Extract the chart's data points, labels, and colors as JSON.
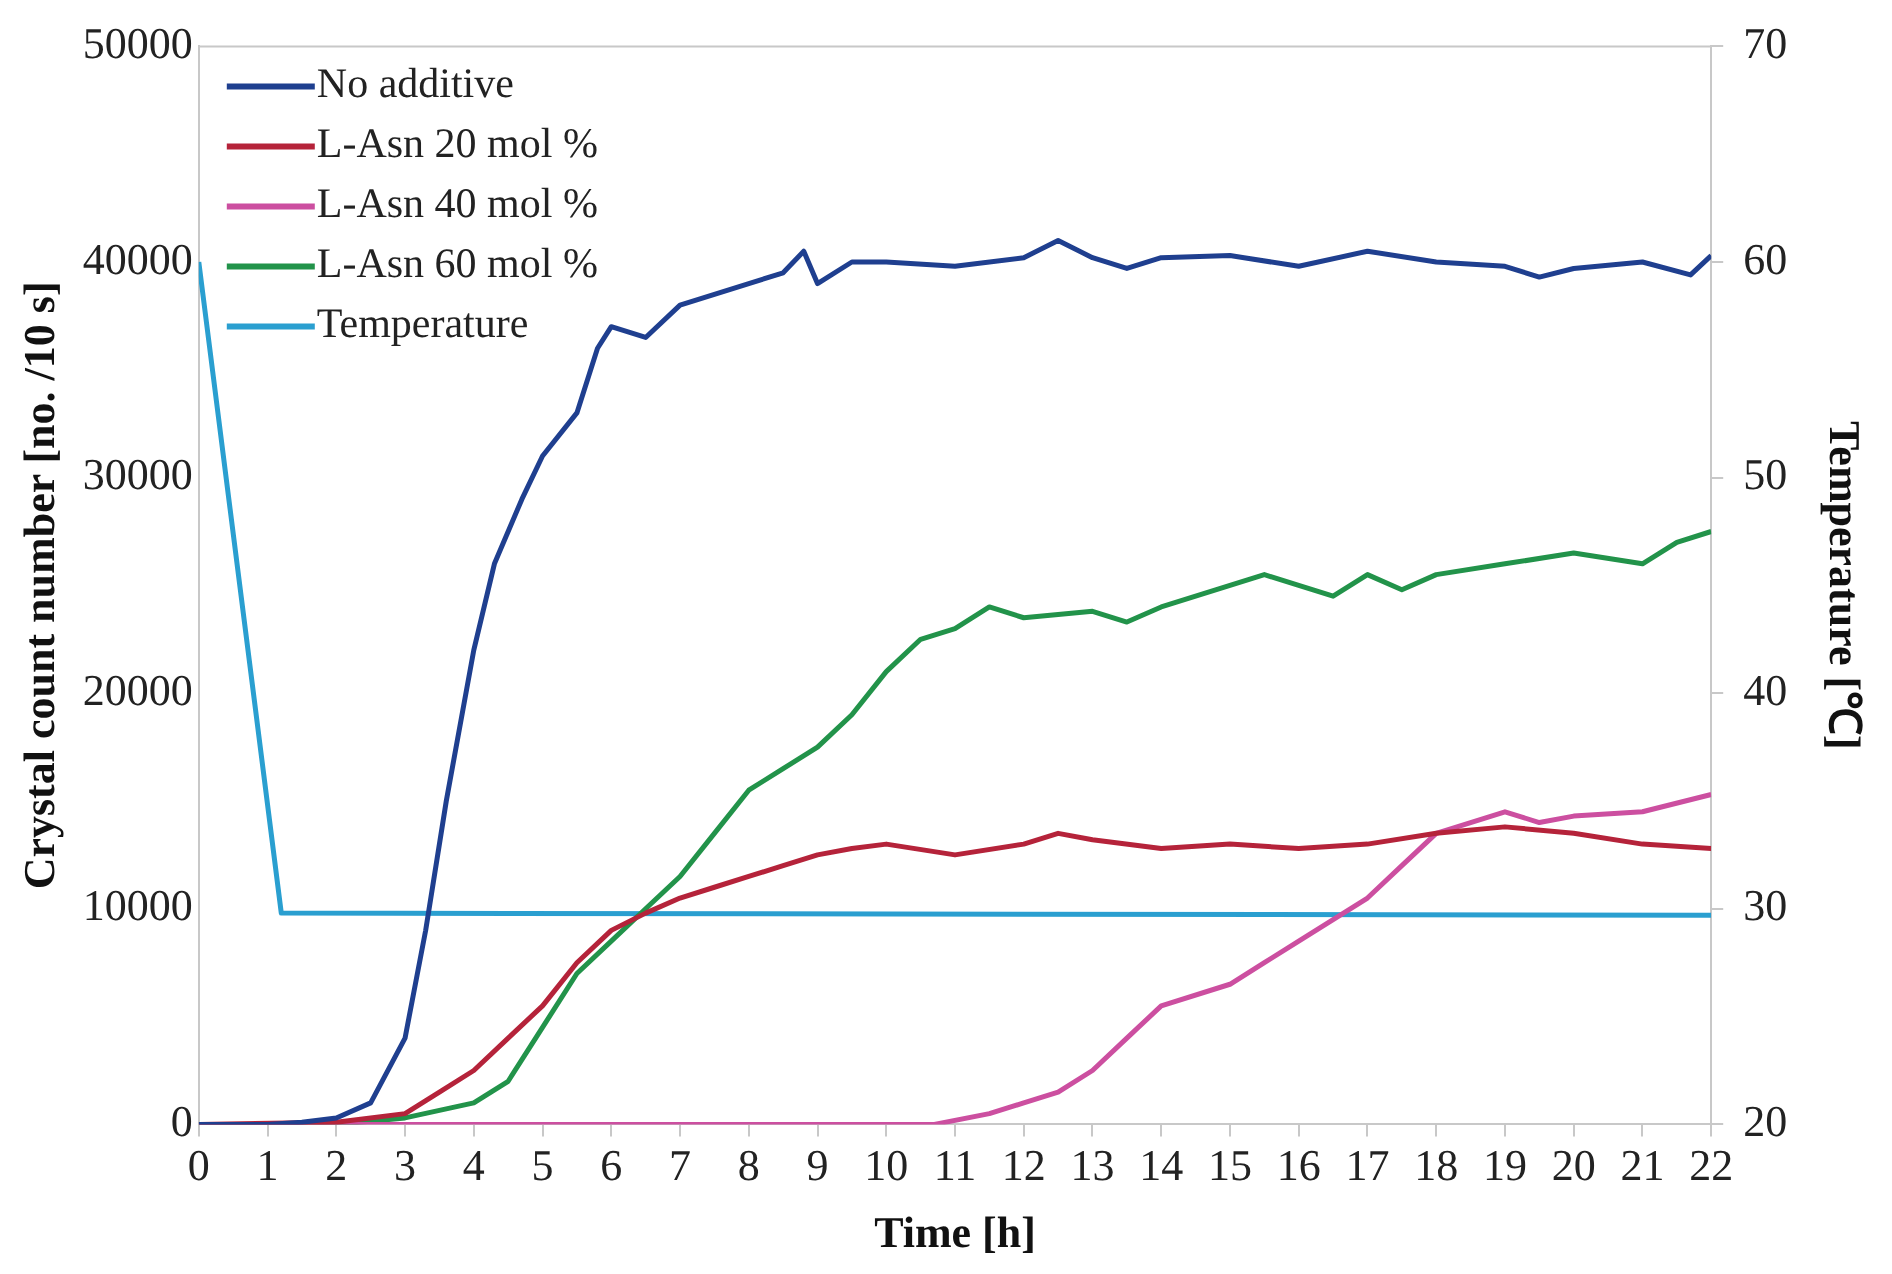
{
  "chart_data": {
    "type": "line",
    "xlabel": "Time [h]",
    "ylabel": "Crystal count number [no. /10 s]",
    "y2label": "Temperature [℃]",
    "xlim": [
      0,
      22
    ],
    "xticks": [
      0,
      1,
      2,
      3,
      4,
      5,
      6,
      7,
      8,
      9,
      10,
      11,
      12,
      13,
      14,
      15,
      16,
      17,
      18,
      19,
      20,
      21,
      22
    ],
    "ylim": [
      0,
      50000
    ],
    "yticks": [
      0,
      10000,
      20000,
      30000,
      40000,
      50000
    ],
    "y2lim": [
      20,
      70
    ],
    "y2ticks": [
      20,
      30,
      40,
      50,
      60,
      70
    ],
    "legend": "top left",
    "grid": false,
    "marker": "none",
    "series": [
      {
        "name": "No additive",
        "color": "#1f3f8f",
        "x": [
          0,
          1,
          1.5,
          2,
          2.5,
          3,
          3.3,
          3.6,
          4,
          4.3,
          4.7,
          5,
          5.5,
          5.8,
          6,
          6.5,
          7,
          7.5,
          8,
          8.5,
          8.8,
          9,
          9.5,
          10,
          11,
          12,
          12.5,
          13,
          13.5,
          14,
          15,
          16,
          17,
          18,
          19,
          19.5,
          20,
          21,
          21.7,
          22
        ],
        "values": [
          0,
          0,
          100,
          300,
          1000,
          4000,
          9000,
          15000,
          22000,
          26000,
          29000,
          31000,
          33000,
          36000,
          37000,
          36500,
          38000,
          38500,
          39000,
          39500,
          40500,
          39000,
          40000,
          40000,
          39800,
          40200,
          41000,
          40200,
          39700,
          40200,
          40300,
          39800,
          40500,
          40000,
          39800,
          39300,
          39700,
          40000,
          39400,
          40300
        ]
      },
      {
        "name": "L-Asn 20 mol %",
        "color": "#b5233a",
        "x": [
          0,
          2,
          3,
          3.5,
          4,
          4.5,
          5,
          5.5,
          6,
          6.5,
          7,
          7.5,
          8,
          8.5,
          9,
          9.5,
          10,
          11,
          12,
          12.5,
          13,
          14,
          15,
          16,
          17,
          18,
          19,
          20,
          21,
          22
        ],
        "values": [
          0,
          100,
          500,
          1500,
          2500,
          4000,
          5500,
          7500,
          9000,
          9800,
          10500,
          11000,
          11500,
          12000,
          12500,
          12800,
          13000,
          12500,
          13000,
          13500,
          13200,
          12800,
          13000,
          12800,
          13000,
          13500,
          13800,
          13500,
          13000,
          12800
        ]
      },
      {
        "name": "L-Asn 40 mol %",
        "color": "#cc4fa0",
        "x": [
          0,
          10.7,
          11.5,
          12,
          12.5,
          13,
          13.5,
          14,
          15,
          15.5,
          16,
          16.5,
          17,
          17.5,
          18,
          18.5,
          19,
          19.5,
          20,
          21,
          22
        ],
        "values": [
          0,
          0,
          500,
          1000,
          1500,
          2500,
          4000,
          5500,
          6500,
          7500,
          8500,
          9500,
          10500,
          12000,
          13500,
          14000,
          14500,
          14000,
          14300,
          14500,
          15300
        ]
      },
      {
        "name": "L-Asn 60 mol %",
        "color": "#22934a",
        "x": [
          0,
          2,
          3,
          4,
          4.5,
          5,
          5.5,
          6,
          6.5,
          7,
          7.5,
          8,
          8.5,
          9,
          9.5,
          10,
          10.5,
          11,
          11.5,
          12,
          13,
          13.5,
          14,
          15,
          15.5,
          16,
          16.5,
          17,
          17.5,
          18,
          19,
          20,
          21,
          21.5,
          22
        ],
        "values": [
          0,
          0,
          300,
          1000,
          2000,
          4500,
          7000,
          8500,
          10000,
          11500,
          13500,
          15500,
          16500,
          17500,
          19000,
          21000,
          22500,
          23000,
          24000,
          23500,
          23800,
          23300,
          24000,
          25000,
          25500,
          25000,
          24500,
          25500,
          24800,
          25500,
          26000,
          26500,
          26000,
          27000,
          27500
        ]
      },
      {
        "name": "Temperature",
        "color": "#2a9fd0",
        "axis": "y2",
        "x": [
          0,
          1.2,
          22
        ],
        "values": [
          60,
          29.8,
          29.7
        ]
      }
    ]
  }
}
